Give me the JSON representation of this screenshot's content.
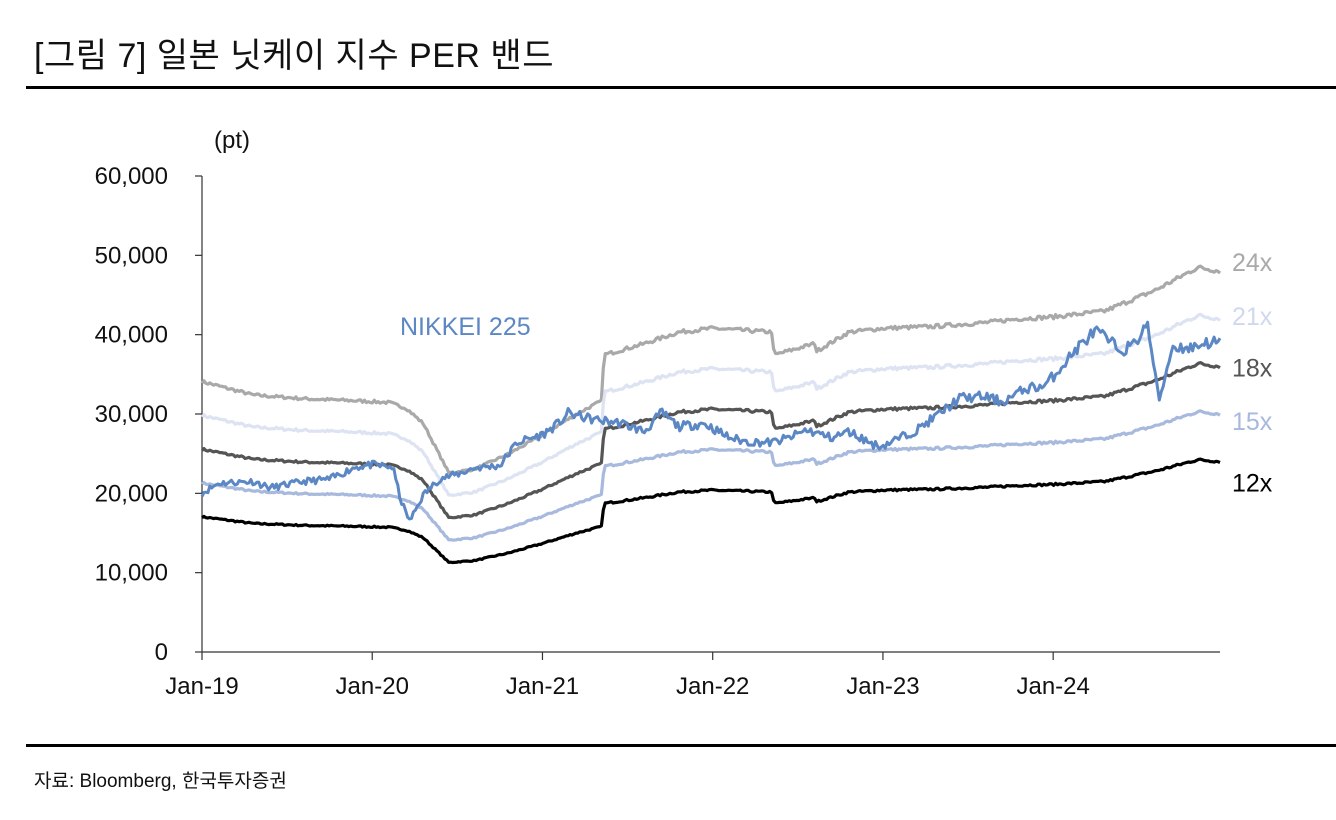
{
  "page": {
    "title": "[그림 7] 일본 닛케이 지수 PER 밴드",
    "source": "자료: Bloomberg, 한국투자증권"
  },
  "chart_data": {
    "type": "line",
    "title": "[그림 7] 일본 닛케이 지수 PER 밴드",
    "ylabel": "(pt)",
    "xlabel": "",
    "ylim": [
      0,
      60000
    ],
    "yticks": [
      0,
      10000,
      20000,
      30000,
      40000,
      50000,
      60000
    ],
    "ytick_labels": [
      "0",
      "10,000",
      "20,000",
      "30,000",
      "40,000",
      "50,000",
      "60,000"
    ],
    "xlim": [
      2019.0,
      2024.98
    ],
    "xticks": [
      2019.0,
      2020.0,
      2021.0,
      2022.0,
      2023.0,
      2024.0
    ],
    "xtick_labels": [
      "Jan-19",
      "Jan-20",
      "Jan-21",
      "Jan-22",
      "Jan-23",
      "Jan-24"
    ],
    "grid": false,
    "legend": "inline labels (band multiples at right end, NIKKEI 225 near upper left)",
    "eps_x": [
      2019.0,
      2019.3,
      2019.6,
      2019.9,
      2020.1,
      2020.2,
      2020.3,
      2020.45,
      2020.6,
      2020.8,
      2021.0,
      2021.2,
      2021.35,
      2021.36,
      2021.6,
      2021.8,
      2022.0,
      2022.35,
      2022.36,
      2022.6,
      2022.61,
      2022.8,
      2023.0,
      2023.3,
      2023.6,
      2023.8,
      2024.0,
      2024.3,
      2024.6,
      2024.85,
      2024.98
    ],
    "eps_y": [
      1420,
      1350,
      1330,
      1320,
      1310,
      1280,
      1200,
      940,
      960,
      1040,
      1140,
      1250,
      1320,
      1560,
      1620,
      1680,
      1700,
      1680,
      1560,
      1620,
      1580,
      1680,
      1700,
      1710,
      1730,
      1750,
      1760,
      1790,
      1900,
      2020,
      2000
    ],
    "series": [
      {
        "name": "24x",
        "multiple": 24,
        "color": "#a9a9a9"
      },
      {
        "name": "21x",
        "multiple": 21,
        "color": "#dde3f2"
      },
      {
        "name": "18x",
        "multiple": 18,
        "color": "#555555"
      },
      {
        "name": "15x",
        "multiple": 15,
        "color": "#a7b9dd"
      },
      {
        "name": "12x",
        "multiple": 12,
        "color": "#000000"
      },
      {
        "name": "NIKKEI 225",
        "color": "#5b87c5",
        "x": [
          2019.0,
          2019.1,
          2019.3,
          2019.4,
          2019.6,
          2019.75,
          2019.9,
          2020.0,
          2020.12,
          2020.17,
          2020.22,
          2020.3,
          2020.4,
          2020.5,
          2020.6,
          2020.75,
          2020.85,
          2021.0,
          2021.1,
          2021.15,
          2021.3,
          2021.45,
          2021.6,
          2021.7,
          2021.8,
          2021.95,
          2022.1,
          2022.2,
          2022.35,
          2022.45,
          2022.55,
          2022.7,
          2022.8,
          2022.95,
          2023.0,
          2023.2,
          2023.38,
          2023.45,
          2023.6,
          2023.7,
          2023.85,
          2023.95,
          2024.05,
          2024.15,
          2024.25,
          2024.4,
          2024.48,
          2024.55,
          2024.59,
          2024.62,
          2024.7,
          2024.8,
          2024.9,
          2024.98
        ],
        "y": [
          20000,
          21300,
          21500,
          20700,
          21500,
          21800,
          23300,
          23600,
          23300,
          19000,
          16500,
          19800,
          21900,
          22400,
          23200,
          23500,
          26400,
          27400,
          28900,
          30100,
          29300,
          28900,
          27800,
          30200,
          28400,
          28800,
          27000,
          26500,
          26400,
          27000,
          28000,
          27000,
          27800,
          26100,
          26000,
          28000,
          30800,
          32000,
          32200,
          31500,
          33300,
          33500,
          36000,
          38500,
          40500,
          38000,
          38800,
          41500,
          36500,
          31500,
          38500,
          38300,
          39000,
          39000
        ]
      }
    ],
    "band_labels": [
      "24x",
      "21x",
      "18x",
      "15x",
      "12x"
    ],
    "series_label": "NIKKEI 225"
  }
}
